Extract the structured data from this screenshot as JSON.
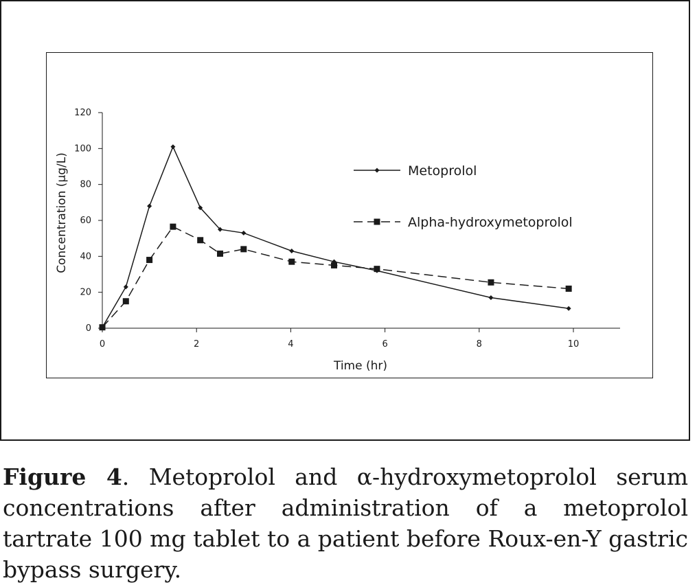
{
  "chart_data": {
    "type": "line",
    "xlabel": "Time (hr)",
    "ylabel": "Concentration (µg/L)",
    "xlim": [
      0,
      10
    ],
    "ylim": [
      0,
      120
    ],
    "xticks": [
      "0",
      "2",
      "4",
      "6",
      "8",
      "10"
    ],
    "yticks": [
      "0",
      "20",
      "40",
      "60",
      "80",
      "100",
      "120"
    ],
    "grid": false,
    "legend_position": "right",
    "series": [
      {
        "name": "Metoprolol",
        "line_style": "solid",
        "marker": "diamond",
        "color": "#1a1a1a",
        "x": [
          0,
          0.5,
          1,
          1.5,
          2.08,
          2.5,
          3,
          4.02,
          4.92,
          5.83,
          8.25,
          9.9
        ],
        "y": [
          0.5,
          23,
          68,
          101,
          67,
          55,
          53,
          43,
          37,
          32,
          17,
          11
        ]
      },
      {
        "name": "Alpha-hydroxymetoprolol",
        "line_style": "dashed",
        "marker": "square",
        "color": "#1a1a1a",
        "x": [
          0,
          0.5,
          1,
          1.5,
          2.08,
          2.5,
          3,
          4.02,
          4.92,
          5.83,
          8.25,
          9.9
        ],
        "y": [
          0.5,
          15,
          38,
          56.5,
          49,
          41.5,
          44,
          37,
          35,
          33,
          25.5,
          22
        ]
      }
    ]
  },
  "caption": {
    "label": "Figure 4",
    "text": ". Metoprolol and α-hydroxymetoprolol serum concentrations after administration of a metoprolol tartrate 100 mg tablet to a patient before Roux-en-Y gastric bypass surgery."
  }
}
